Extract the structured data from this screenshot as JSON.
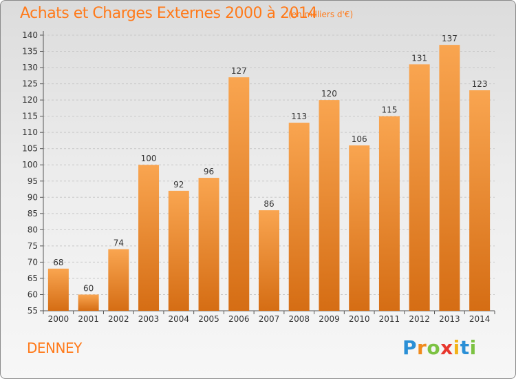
{
  "title": "Achats et Charges Externes 2000 à 2014",
  "subtitle": "(en milliers d'€)",
  "commune": "DENNEY",
  "logo": [
    "P",
    "r",
    "o",
    "x",
    "i",
    "t",
    "i"
  ],
  "colors": {
    "bar_light": "#f7a44c",
    "bar_dark": "#d9741a",
    "text_accent": "#ff7a1a",
    "grid": "#cccccc"
  },
  "chart_data": {
    "type": "bar",
    "categories": [
      "2000",
      "2001",
      "2002",
      "2003",
      "2004",
      "2005",
      "2006",
      "2007",
      "2008",
      "2009",
      "2010",
      "2011",
      "2012",
      "2013",
      "2014"
    ],
    "values": [
      68,
      60,
      74,
      100,
      92,
      96,
      127,
      86,
      113,
      120,
      106,
      115,
      131,
      137,
      123
    ],
    "ylim": [
      55,
      140
    ],
    "yticks": [
      55,
      60,
      65,
      70,
      75,
      80,
      85,
      90,
      95,
      100,
      105,
      110,
      115,
      120,
      125,
      130,
      135,
      140
    ],
    "grid": true,
    "data_labels": true
  }
}
